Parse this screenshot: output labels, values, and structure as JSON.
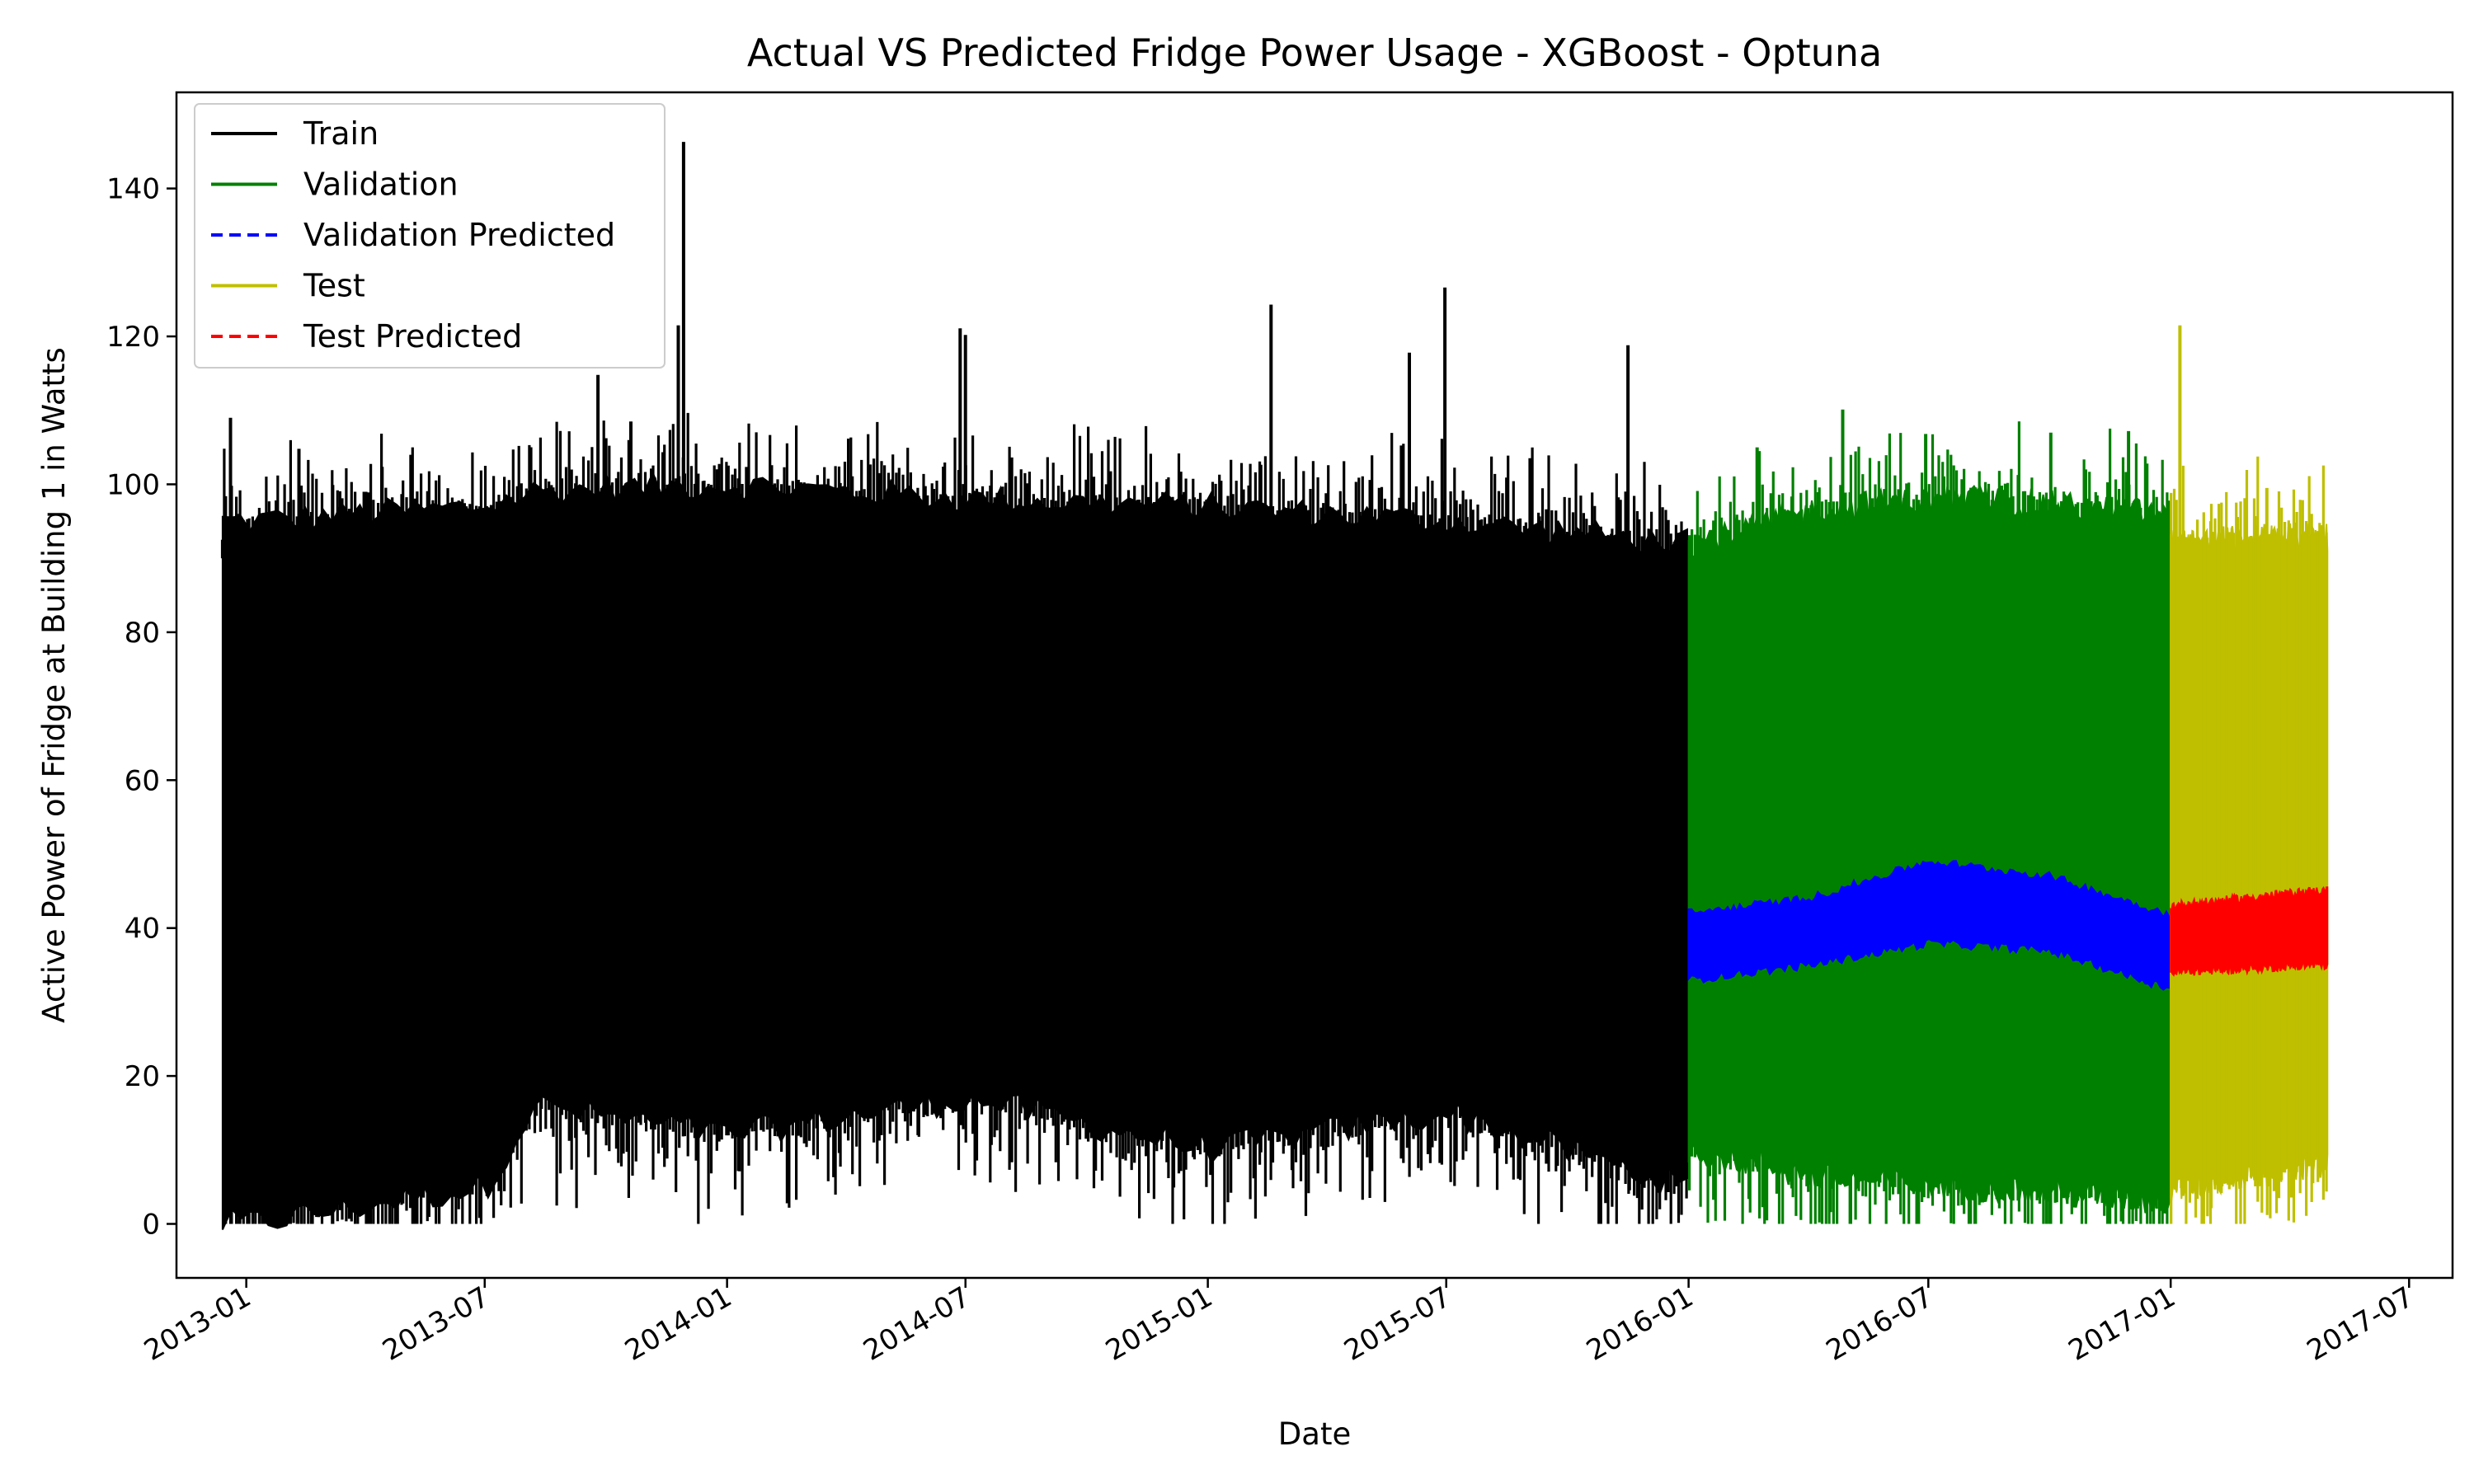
{
  "chart_data": {
    "type": "line",
    "title": "Actual VS Predicted Fridge Power Usage - XGBoost - Optuna",
    "xlabel": "Date",
    "ylabel": "Active Power of Fridge at Building 1 in Watts",
    "xlim": [
      "2012-11-09",
      "2017-08-03"
    ],
    "ylim": [
      -7.3,
      153
    ],
    "x_ticks": [
      "2013-01",
      "2013-07",
      "2014-01",
      "2014-07",
      "2015-01",
      "2015-07",
      "2016-01",
      "2016-07",
      "2017-01",
      "2017-07"
    ],
    "y_ticks": [
      0,
      20,
      40,
      60,
      80,
      100,
      120,
      140
    ],
    "grid": false,
    "legend": "top-left",
    "series": [
      {
        "name": "Train",
        "color": "#000000",
        "style": "solid",
        "range": [
          "2012-12-14",
          "2015-12-31"
        ],
        "band": [
          [
            2013.0,
            0,
            95
          ],
          [
            2013.5,
            5,
            97
          ],
          [
            2013.6,
            16,
            99
          ],
          [
            2014.0,
            12,
            100
          ],
          [
            2014.5,
            17,
            98
          ],
          [
            2015.0,
            10,
            97
          ],
          [
            2015.5,
            15,
            95
          ],
          [
            2015.99,
            5,
            92
          ]
        ],
        "peaks": [
          [
            "2012-12-14",
            92.5
          ],
          [
            "2012-12-20",
            109
          ],
          [
            "2013-02-10",
            104.8
          ],
          [
            "2013-05-06",
            104
          ],
          [
            "2013-09-25",
            114.8
          ],
          [
            "2013-10-20",
            108.5
          ],
          [
            "2013-11-29",
            146.3
          ],
          [
            "2013-11-25",
            121.5
          ],
          [
            "2014-06-27",
            121.1
          ],
          [
            "2014-07-01",
            120.2
          ],
          [
            "2015-02-18",
            124.3
          ],
          [
            "2015-06-03",
            117.8
          ],
          [
            "2015-06-30",
            126.6
          ],
          [
            "2015-11-16",
            118.8
          ]
        ]
      },
      {
        "name": "Validation",
        "color": "#008000",
        "style": "solid",
        "range": [
          "2016-01-01",
          "2016-12-31"
        ],
        "band": [
          [
            2016.0,
            10,
            92
          ],
          [
            2016.3,
            6,
            97
          ],
          [
            2016.6,
            5,
            98
          ],
          [
            2016.99,
            3,
            96
          ]
        ],
        "peaks": [
          [
            "2016-02-22",
            105
          ],
          [
            "2016-04-27",
            110.1
          ],
          [
            "2016-06-29",
            106.8
          ],
          [
            "2016-10-02",
            107
          ],
          [
            "2016-11-30",
            107.2
          ]
        ]
      },
      {
        "name": "Validation Predicted",
        "color": "#0000ff",
        "style": "dashed",
        "range": [
          "2016-01-01",
          "2016-12-31"
        ],
        "band": [
          [
            2016.0,
            33,
            42
          ],
          [
            2016.25,
            35,
            44
          ],
          [
            2016.5,
            38,
            49
          ],
          [
            2016.75,
            37,
            47
          ],
          [
            2016.99,
            32,
            42
          ]
        ],
        "peaks": []
      },
      {
        "name": "Test",
        "color": "#bfbf00",
        "style": "solid",
        "range": [
          "2017-01-01",
          "2017-04-30"
        ],
        "band": [
          [
            2017.0,
            5,
            92
          ],
          [
            2017.3,
            8,
            93
          ]
        ],
        "peaks": [
          [
            "2017-01-08",
            121.5
          ],
          [
            "2017-03-15",
            99.5
          ]
        ]
      },
      {
        "name": "Test Predicted",
        "color": "#ff0000",
        "style": "dashed",
        "range": [
          "2017-01-01",
          "2017-04-30"
        ],
        "band": [
          [
            2017.0,
            34,
            43
          ],
          [
            2017.3,
            35,
            45
          ]
        ],
        "peaks": []
      }
    ]
  }
}
